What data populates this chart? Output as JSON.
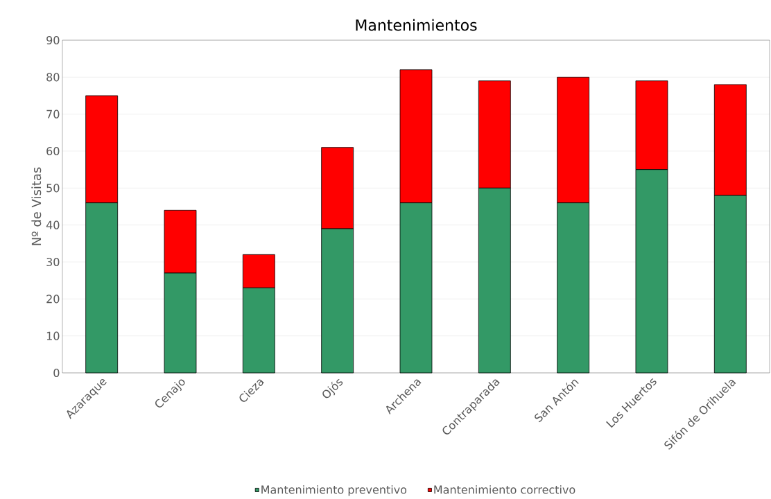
{
  "chart_data": {
    "type": "bar",
    "title": "Mantenimientos",
    "ylabel": "Nº de Visitas",
    "categories": [
      "Azaraque",
      "Cenajo",
      "Cieza",
      "Ojós",
      "Archena",
      "Contraparada",
      "San Antón",
      "Los Huertos",
      "Sifón de Orihuela"
    ],
    "series": [
      {
        "name": "Mantenimiento preventivo",
        "color": "#339966",
        "values": [
          46,
          27,
          23,
          39,
          46,
          50,
          46,
          55,
          48
        ]
      },
      {
        "name": "Mantenimiento correctivo",
        "color": "#ff0000",
        "values": [
          29,
          17,
          9,
          22,
          36,
          29,
          34,
          24,
          30
        ]
      }
    ],
    "stacked": true,
    "ylim": [
      0,
      90
    ],
    "yticks": [
      0,
      10,
      20,
      30,
      40,
      50,
      60,
      70,
      80,
      90
    ],
    "grid": "y",
    "legend": "bottom"
  }
}
